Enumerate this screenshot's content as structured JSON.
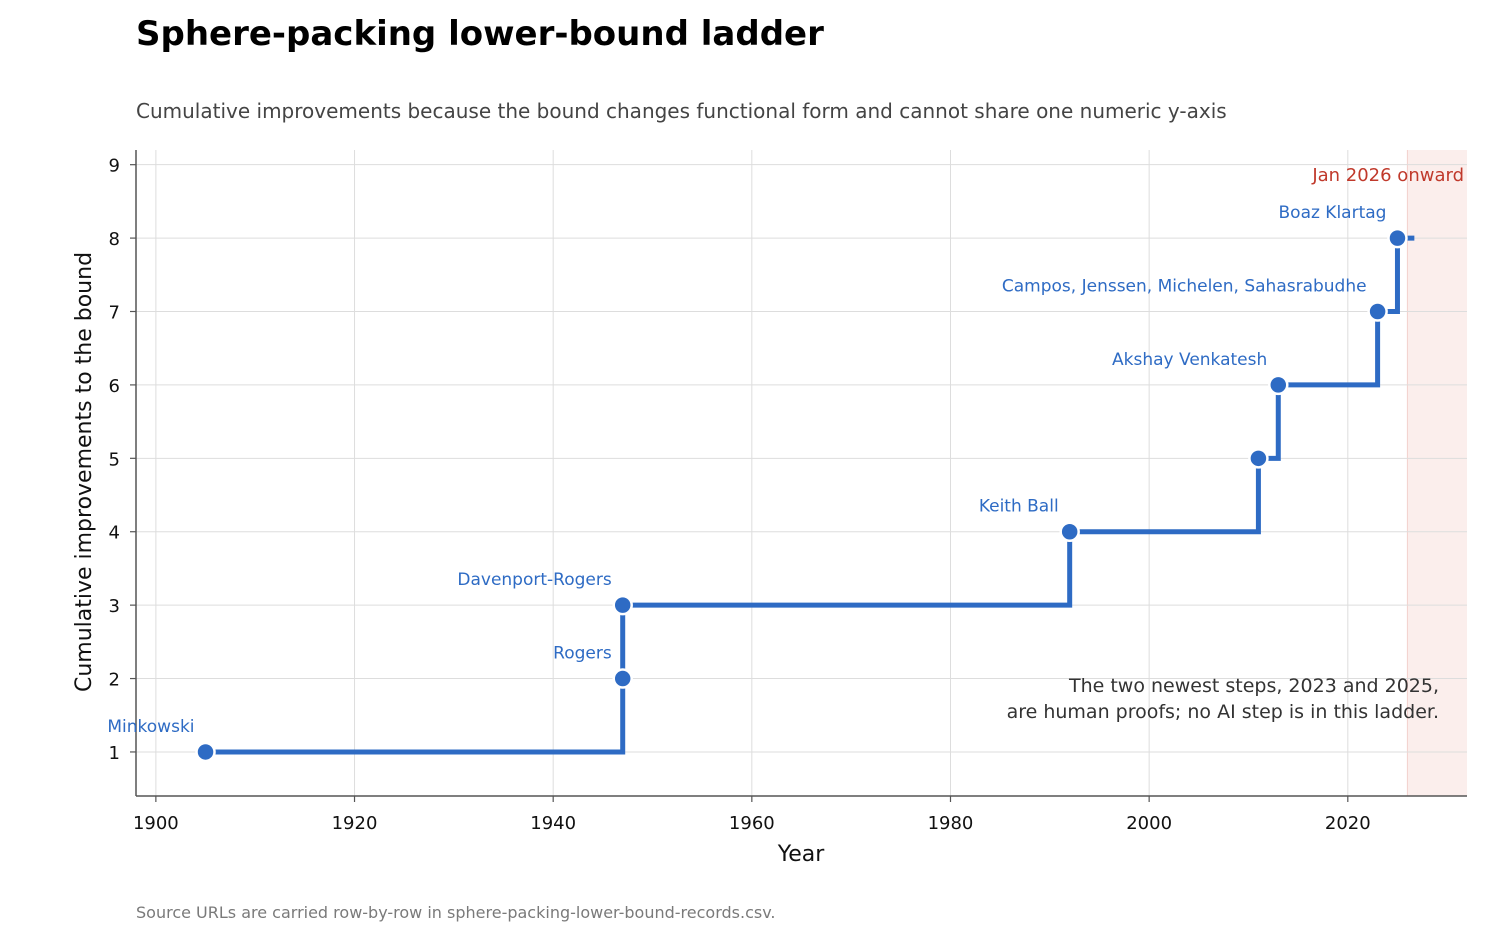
{
  "title": "Sphere-packing lower-bound ladder",
  "subtitle": "Cumulative improvements because the bound changes functional form and cannot share one numeric y-axis",
  "source_note": "Source URLs are carried row-by-row in sphere-packing-lower-bound-records.csv.",
  "chart_data": {
    "type": "line",
    "step": "post",
    "xlabel": "Year",
    "ylabel": "Cumulative improvements to the bound",
    "xlim": [
      1898,
      2032
    ],
    "ylim": [
      0.4,
      9.2
    ],
    "xticks": [
      1900,
      1920,
      1940,
      1960,
      1980,
      2000,
      2020
    ],
    "yticks": [
      1,
      2,
      3,
      4,
      5,
      6,
      7,
      8,
      9
    ],
    "grid": true,
    "line_end_x": 2026.7,
    "points": [
      {
        "x": 1905,
        "y": 1,
        "label": "Minkowski"
      },
      {
        "x": 1947,
        "y": 2,
        "label": "Rogers"
      },
      {
        "x": 1947,
        "y": 3,
        "label": "Davenport-Rogers"
      },
      {
        "x": 1992,
        "y": 4,
        "label": "Keith Ball"
      },
      {
        "x": 2011,
        "y": 5,
        "label": ""
      },
      {
        "x": 2013,
        "y": 6,
        "label": "Akshay Venkatesh"
      },
      {
        "x": 2023,
        "y": 7,
        "label": "Campos, Jenssen, Michelen, Sahasrabudhe"
      },
      {
        "x": 2025,
        "y": 8,
        "label": "Boaz Klartag"
      }
    ],
    "shaded_region": {
      "x_start": 2026,
      "label": "Jan 2026 onward",
      "color": "#c0392b"
    },
    "annotation": {
      "lines": [
        "The two newest steps, 2023 and 2025,",
        "are human proofs; no AI step is in this ladder."
      ]
    },
    "colors": {
      "series": "#2e6bc4",
      "label": "#2e6bc4",
      "grid": "#dddddd",
      "axis": "#555555",
      "region_fill": "#fbeeec"
    }
  }
}
